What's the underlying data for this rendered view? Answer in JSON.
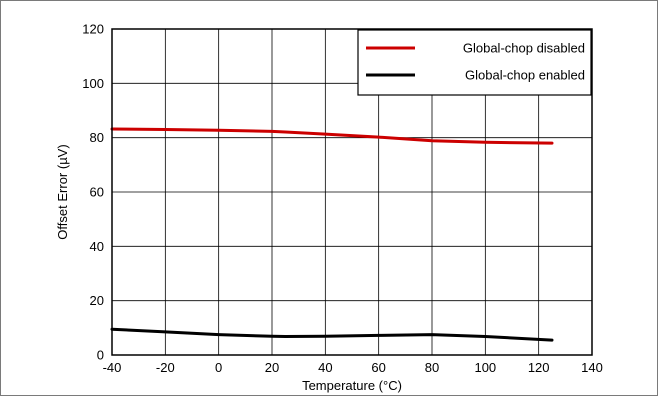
{
  "chart_data": {
    "type": "line",
    "xlabel": "Temperature (°C)",
    "ylabel": "Offset Error (µV)",
    "xlim": [
      -40,
      140
    ],
    "ylim": [
      0,
      120
    ],
    "xticks": [
      -40,
      -20,
      0,
      20,
      40,
      60,
      80,
      100,
      120,
      140
    ],
    "yticks": [
      0,
      20,
      40,
      60,
      80,
      100,
      120
    ],
    "grid": true,
    "legend_position": "top-right",
    "series": [
      {
        "name": "Global-chop disabled",
        "color": "#cc0000",
        "x": [
          -40,
          -20,
          0,
          20,
          25,
          40,
          60,
          80,
          100,
          125
        ],
        "y": [
          83.2,
          83.0,
          82.7,
          82.3,
          82.1,
          81.3,
          80.2,
          78.9,
          78.3,
          78.0
        ]
      },
      {
        "name": "Global-chop enabled",
        "color": "#000000",
        "x": [
          -40,
          -20,
          0,
          20,
          25,
          40,
          60,
          80,
          100,
          125
        ],
        "y": [
          9.5,
          8.5,
          7.5,
          6.9,
          6.8,
          6.9,
          7.2,
          7.5,
          6.8,
          5.5
        ]
      }
    ]
  }
}
